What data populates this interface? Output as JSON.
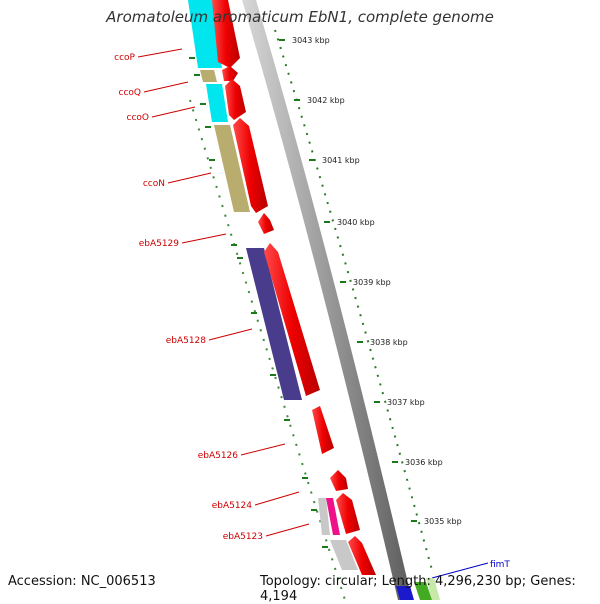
{
  "title": "Aromatoleum aromaticum EbN1, complete genome",
  "footer": {
    "accession": "Accession: NC_006513",
    "summary": "Topology: circular; Length: 4,296,230 bp; Genes: 4,194"
  },
  "ruler": {
    "unit": "kbp",
    "ticks": [
      {
        "label": "3043 kbp",
        "kbp": 3043
      },
      {
        "label": "3042 kbp",
        "kbp": 3042
      },
      {
        "label": "3041 kbp",
        "kbp": 3041
      },
      {
        "label": "3040 kbp",
        "kbp": 3040
      },
      {
        "label": "3039 kbp",
        "kbp": 3039
      },
      {
        "label": "3038 kbp",
        "kbp": 3038
      },
      {
        "label": "3037 kbp",
        "kbp": 3037
      },
      {
        "label": "3036 kbp",
        "kbp": 3036
      },
      {
        "label": "3035 kbp",
        "kbp": 3035
      }
    ]
  },
  "gene_labels": [
    {
      "name": "ccoP",
      "color": "#cc0000"
    },
    {
      "name": "ccoQ",
      "color": "#cc0000"
    },
    {
      "name": "ccoO",
      "color": "#cc0000"
    },
    {
      "name": "ccoN",
      "color": "#cc0000"
    },
    {
      "name": "ebA5129",
      "color": "#cc0000"
    },
    {
      "name": "ebA5128",
      "color": "#cc0000"
    },
    {
      "name": "ebA5126",
      "color": "#cc0000"
    },
    {
      "name": "ebA5124",
      "color": "#cc0000"
    },
    {
      "name": "ebA5123",
      "color": "#cc0000"
    },
    {
      "name": "fimT",
      "color": "#0000cc"
    }
  ],
  "colors": {
    "cds": "#ee0000",
    "cyan_feature": "#00e5ee",
    "khaki_feature": "#b8ac6e",
    "slate_feature": "#4a3c8c",
    "magenta_feature": "#ee1188",
    "grey_feature": "#c8c8c8",
    "backbone": "#8c8c8c",
    "tick": "#1a7a1a"
  }
}
